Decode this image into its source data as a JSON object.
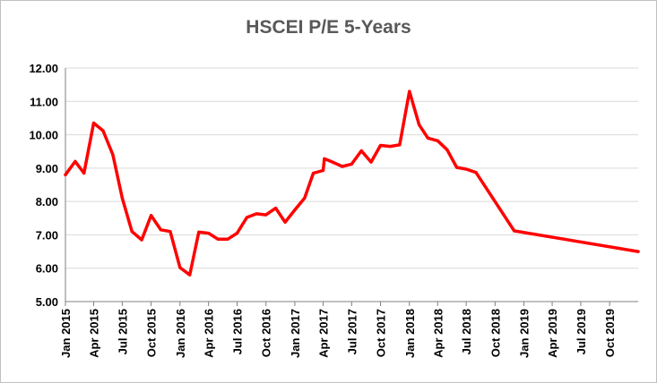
{
  "chart_data": {
    "type": "line",
    "title": "HSCEI P/E 5-Years",
    "xlabel": "",
    "ylabel": "",
    "ylim": [
      5.0,
      12.0
    ],
    "yticks": [
      "5.00",
      "6.00",
      "7.00",
      "8.00",
      "9.00",
      "10.00",
      "11.00",
      "12.00"
    ],
    "xticks": [
      "Jan 2015",
      "Apr 2015",
      "Jul 2015",
      "Oct 2015",
      "Jan 2016",
      "Apr 2016",
      "Jul 2016",
      "Oct 2016",
      "Jan 2017",
      "Apr 2017",
      "Jul 2017",
      "Oct 2017",
      "Jan 2018",
      "Apr 2018",
      "Jul 2018",
      "Oct 2018",
      "Jan 2019",
      "Apr 2019",
      "Jul 2019",
      "Oct 2019"
    ],
    "xlim": [
      "2015-01-01",
      "2019-12-31"
    ],
    "grid": "horizontal",
    "legend": "none",
    "line_color": "#ff0000",
    "series": [
      {
        "points": [
          [
            "2015-01-01",
            8.8
          ],
          [
            "2015-02-01",
            9.2
          ],
          [
            "2015-03-01",
            8.85
          ],
          [
            "2015-04-01",
            10.35
          ],
          [
            "2015-05-01",
            10.12
          ],
          [
            "2015-06-01",
            9.4
          ],
          [
            "2015-07-01",
            8.1
          ],
          [
            "2015-08-01",
            7.1
          ],
          [
            "2015-09-01",
            6.85
          ],
          [
            "2015-10-01",
            7.58
          ],
          [
            "2015-11-01",
            7.15
          ],
          [
            "2015-12-01",
            7.1
          ],
          [
            "2016-01-01",
            6.02
          ],
          [
            "2016-02-01",
            5.8
          ],
          [
            "2016-03-01",
            7.08
          ],
          [
            "2016-04-01",
            7.05
          ],
          [
            "2016-05-01",
            6.87
          ],
          [
            "2016-06-01",
            6.87
          ],
          [
            "2016-07-01",
            7.05
          ],
          [
            "2016-08-01",
            7.52
          ],
          [
            "2016-09-01",
            7.63
          ],
          [
            "2016-10-01",
            7.6
          ],
          [
            "2016-11-01",
            7.8
          ],
          [
            "2016-12-01",
            7.38
          ],
          [
            "2017-01-01",
            7.75
          ],
          [
            "2017-02-01",
            8.1
          ],
          [
            "2017-03-01",
            8.85
          ],
          [
            "2017-04-01",
            8.93
          ],
          [
            "2017-04-05",
            9.28
          ],
          [
            "2017-05-01",
            9.18
          ],
          [
            "2017-06-01",
            9.05
          ],
          [
            "2017-07-01",
            9.12
          ],
          [
            "2017-08-01",
            9.52
          ],
          [
            "2017-09-01",
            9.18
          ],
          [
            "2017-10-01",
            9.68
          ],
          [
            "2017-11-01",
            9.65
          ],
          [
            "2017-12-01",
            9.7
          ],
          [
            "2018-01-01",
            11.3
          ],
          [
            "2018-02-01",
            10.3
          ],
          [
            "2018-03-01",
            9.9
          ],
          [
            "2018-04-01",
            9.82
          ],
          [
            "2018-05-01",
            9.55
          ],
          [
            "2018-06-01",
            9.02
          ],
          [
            "2018-07-01",
            8.97
          ],
          [
            "2018-08-01",
            8.87
          ],
          [
            "2018-12-01",
            7.12
          ],
          [
            "2019-12-31",
            6.5
          ]
        ]
      }
    ]
  }
}
